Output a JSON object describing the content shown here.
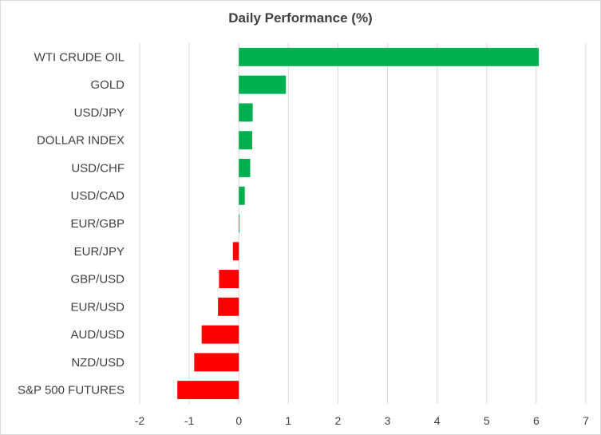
{
  "chart_data": {
    "type": "bar",
    "orientation": "horizontal",
    "title": "Daily Performance (%)",
    "xlabel": "",
    "ylabel": "",
    "xlim": [
      -2,
      7
    ],
    "xticks": [
      "-2",
      "-1",
      "0",
      "1",
      "2",
      "3",
      "4",
      "5",
      "6",
      "7"
    ],
    "grid": true,
    "legend": "none",
    "positive_color": "#00B050",
    "negative_color": "#FF0000",
    "categories": [
      "WTI CRUDE OIL",
      "GOLD",
      "USD/JPY",
      "DOLLAR INDEX",
      "USD/CHF",
      "USD/CAD",
      "EUR/GBP",
      "EUR/JPY",
      "GBP/USD",
      "EUR/USD",
      "AUD/USD",
      "NZD/USD",
      "S&P 500 FUTURES"
    ],
    "values": [
      6.05,
      0.95,
      0.28,
      0.27,
      0.23,
      0.12,
      0.0,
      -0.12,
      -0.4,
      -0.42,
      -0.75,
      -0.9,
      -1.24
    ]
  }
}
